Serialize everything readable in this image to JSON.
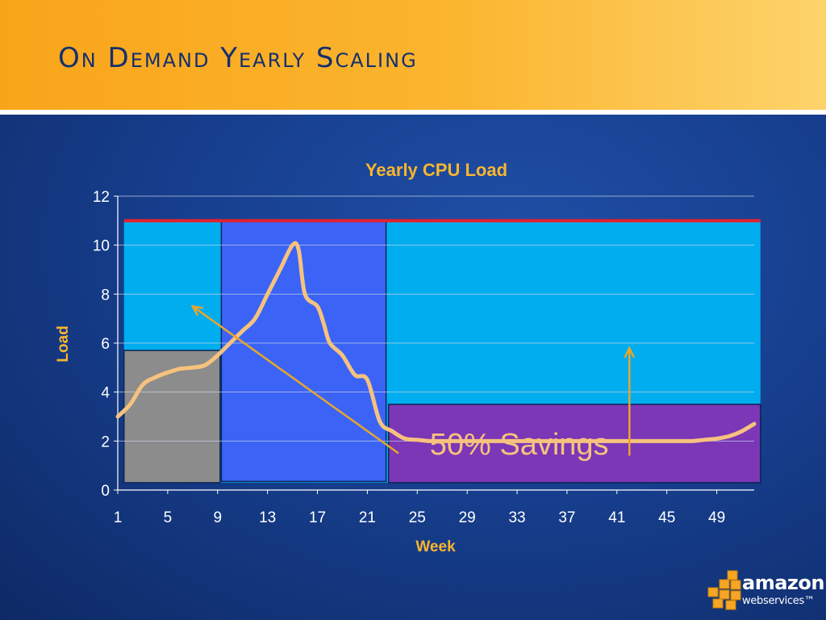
{
  "slide": {
    "title": "On Demand Yearly Scaling"
  },
  "logo": {
    "word": "amazon",
    "sub": "webservices™"
  },
  "colors": {
    "background": "#173f8f",
    "header": "#fbb52f",
    "title": "#14306e",
    "capacity_line": "#e4202e",
    "reserved_fill": "#00adef",
    "gray_fill": "#8c8c8c",
    "blue_fill": "#3b64f6",
    "purple_fill": "#7b37b6",
    "load_line": "#f6c27e",
    "arrow": "#e8a52a",
    "axis_text": "#ffffff",
    "label_text": "#fbb52f"
  },
  "chart_data": {
    "type": "area",
    "title": "Yearly CPU Load",
    "xlabel": "Week",
    "ylabel": "Load",
    "ylim": [
      0,
      12
    ],
    "xlim": [
      1,
      52
    ],
    "xticks": [
      1,
      5,
      9,
      13,
      17,
      21,
      25,
      29,
      33,
      37,
      41,
      45,
      49
    ],
    "yticks": [
      0,
      2,
      4,
      6,
      8,
      10,
      12
    ],
    "grid": true,
    "capacity_line": 11,
    "regions": [
      {
        "name": "",
        "x_start": 1.5,
        "x_end": 9.2,
        "y_bottom": 0.3,
        "y_top": 5.7,
        "color": "#8c8c8c"
      },
      {
        "name": "",
        "x_start": 9.3,
        "x_end": 22.5,
        "y_bottom": 0.35,
        "y_top": 11,
        "color": "#3b64f6"
      },
      {
        "name": "",
        "x_start": 22.7,
        "x_end": 52.5,
        "y_bottom": 0.3,
        "y_top": 3.5,
        "color": "#7b37b6"
      }
    ],
    "series": [
      {
        "name": "",
        "x": [
          1,
          2,
          3,
          4,
          5,
          6,
          7,
          8,
          9,
          10,
          11,
          12,
          13,
          14,
          15,
          15.5,
          16,
          17,
          17.5,
          18,
          19,
          20,
          21,
          22,
          23,
          24,
          25,
          26,
          27,
          28,
          30,
          32,
          34,
          36,
          38,
          40,
          42,
          44,
          46,
          47,
          48,
          49,
          50,
          51,
          52
        ],
        "y": [
          3.0,
          3.5,
          4.3,
          4.6,
          4.8,
          4.95,
          5.0,
          5.1,
          5.5,
          6.0,
          6.5,
          7.0,
          8.0,
          9.0,
          10.0,
          9.8,
          8.0,
          7.5,
          6.8,
          6.0,
          5.5,
          4.7,
          4.5,
          2.8,
          2.4,
          2.1,
          2.05,
          2.0,
          2.0,
          2.0,
          2.0,
          2.0,
          2.0,
          2.0,
          2.0,
          2.0,
          2.0,
          2.0,
          2.0,
          2.0,
          2.05,
          2.1,
          2.2,
          2.4,
          2.7
        ]
      }
    ],
    "annotations": [
      {
        "text": "50% Savings",
        "x": 26,
        "y": 1.45
      }
    ],
    "arrows": [
      {
        "from": [
          23.5,
          1.5
        ],
        "to": [
          7.0,
          7.5
        ]
      },
      {
        "from": [
          42.0,
          1.4
        ],
        "to": [
          42.0,
          5.8
        ]
      }
    ]
  }
}
